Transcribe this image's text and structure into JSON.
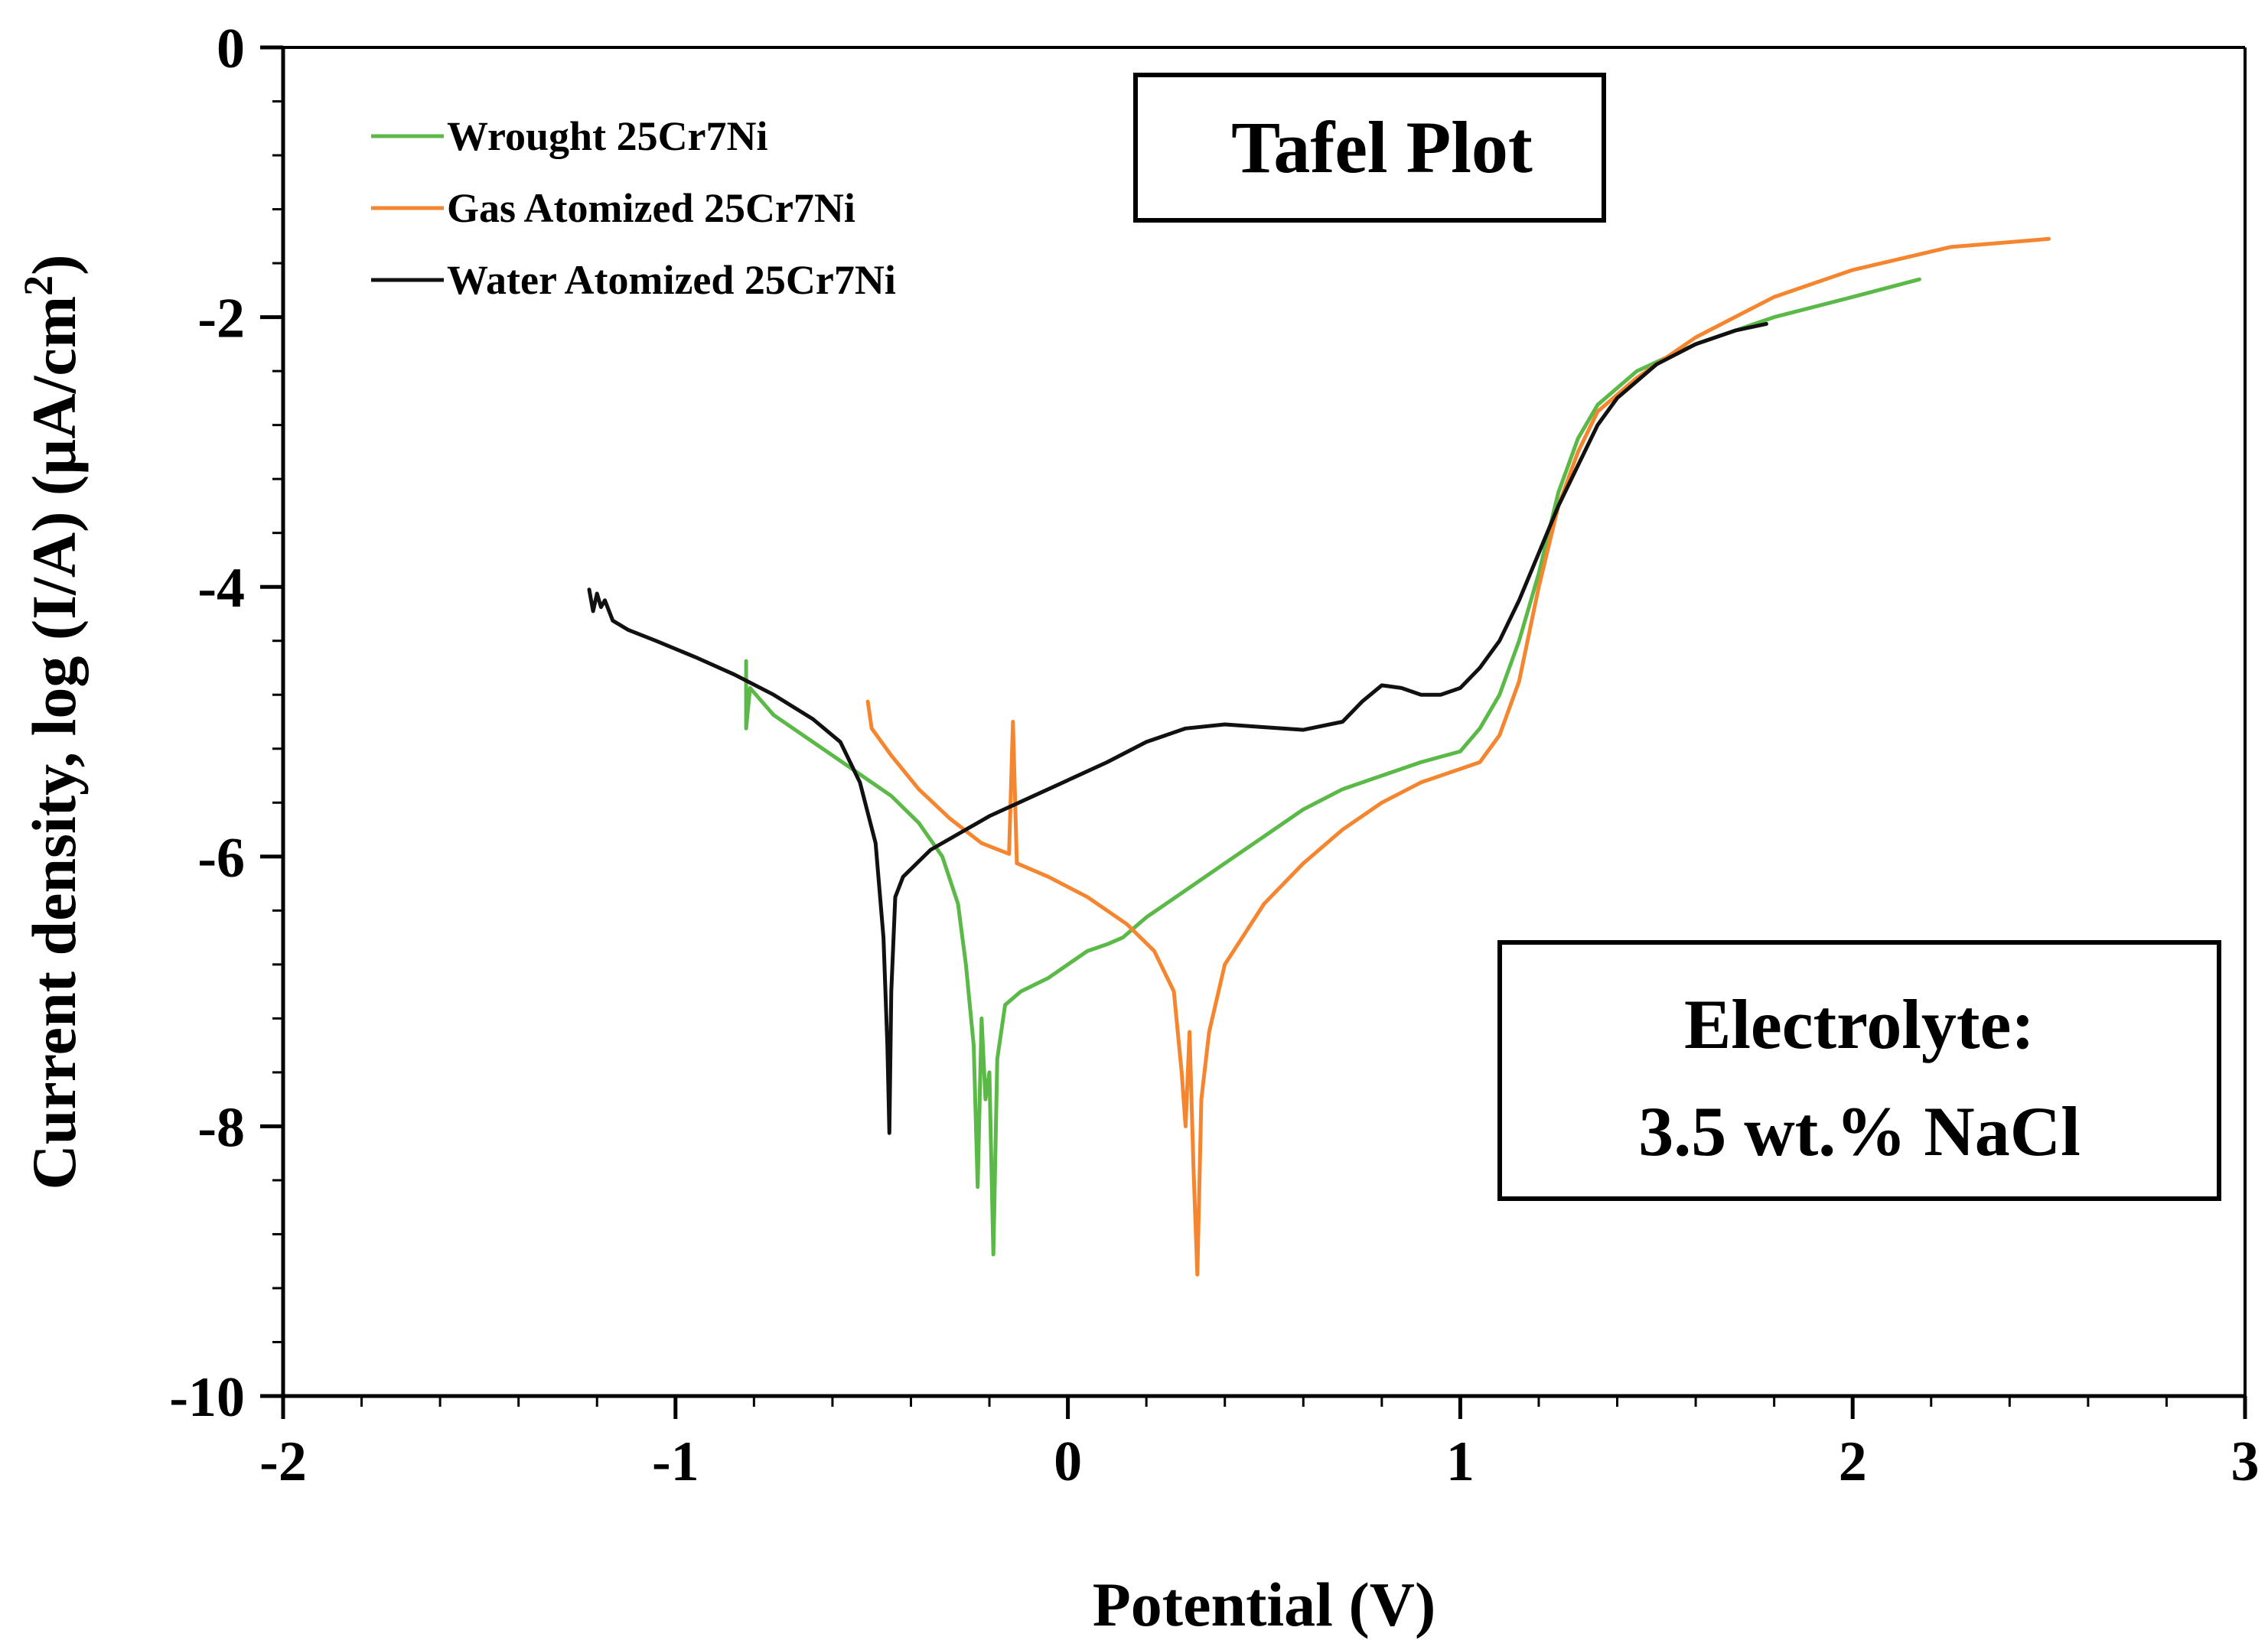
{
  "chart_data": {
    "type": "line",
    "title": "Tafel Plot",
    "xlabel": "Potential (V)",
    "ylabel_main": "Current density, log (I/A) (µA/cm",
    "ylabel_sup": "2",
    "ylabel_close": ")",
    "xlim": [
      -2,
      3
    ],
    "ylim": [
      -10,
      0
    ],
    "x_ticks": [
      {
        "value": -2,
        "label": "-2"
      },
      {
        "value": -1,
        "label": "-1"
      },
      {
        "value": 0,
        "label": "0"
      },
      {
        "value": 1,
        "label": "1"
      },
      {
        "value": 2,
        "label": "2"
      },
      {
        "value": 3,
        "label": "3"
      }
    ],
    "y_ticks": [
      {
        "value": 0,
        "label": "0"
      },
      {
        "value": -2,
        "label": "-2"
      },
      {
        "value": -4,
        "label": "-4"
      },
      {
        "value": -6,
        "label": "-6"
      },
      {
        "value": -8,
        "label": "-8"
      },
      {
        "value": -10,
        "label": "-10"
      }
    ],
    "annotation": {
      "line1": "Electrolyte:",
      "line2": "3.5 wt.% NaCl"
    },
    "legend_position": "top-left",
    "series": [
      {
        "name": "Wrought 25Cr7Ni",
        "color": "#5ab947",
        "points": [
          [
            -0.82,
            -4.55
          ],
          [
            -0.82,
            -5.05
          ],
          [
            -0.81,
            -4.75
          ],
          [
            -0.75,
            -4.95
          ],
          [
            -0.65,
            -5.15
          ],
          [
            -0.55,
            -5.35
          ],
          [
            -0.45,
            -5.55
          ],
          [
            -0.38,
            -5.75
          ],
          [
            -0.32,
            -6.0
          ],
          [
            -0.28,
            -6.35
          ],
          [
            -0.26,
            -6.8
          ],
          [
            -0.24,
            -7.4
          ],
          [
            -0.23,
            -8.45
          ],
          [
            -0.22,
            -7.2
          ],
          [
            -0.21,
            -7.8
          ],
          [
            -0.2,
            -7.6
          ],
          [
            -0.19,
            -8.95
          ],
          [
            -0.18,
            -7.5
          ],
          [
            -0.16,
            -7.1
          ],
          [
            -0.12,
            -7.0
          ],
          [
            -0.05,
            -6.9
          ],
          [
            0.0,
            -6.8
          ],
          [
            0.05,
            -6.7
          ],
          [
            0.1,
            -6.65
          ],
          [
            0.14,
            -6.6
          ],
          [
            0.2,
            -6.45
          ],
          [
            0.3,
            -6.25
          ],
          [
            0.4,
            -6.05
          ],
          [
            0.5,
            -5.85
          ],
          [
            0.6,
            -5.65
          ],
          [
            0.7,
            -5.5
          ],
          [
            0.8,
            -5.4
          ],
          [
            0.9,
            -5.3
          ],
          [
            1.0,
            -5.22
          ],
          [
            1.05,
            -5.05
          ],
          [
            1.1,
            -4.8
          ],
          [
            1.15,
            -4.4
          ],
          [
            1.2,
            -3.9
          ],
          [
            1.25,
            -3.3
          ],
          [
            1.3,
            -2.9
          ],
          [
            1.35,
            -2.65
          ],
          [
            1.45,
            -2.4
          ],
          [
            1.6,
            -2.2
          ],
          [
            1.8,
            -2.0
          ],
          [
            2.0,
            -1.85
          ],
          [
            2.17,
            -1.72
          ]
        ]
      },
      {
        "name": "Gas Atomized 25Cr7Ni",
        "color": "#f5862f",
        "points": [
          [
            -0.51,
            -4.85
          ],
          [
            -0.5,
            -5.05
          ],
          [
            -0.45,
            -5.25
          ],
          [
            -0.38,
            -5.5
          ],
          [
            -0.3,
            -5.72
          ],
          [
            -0.22,
            -5.9
          ],
          [
            -0.15,
            -5.98
          ],
          [
            -0.14,
            -5.0
          ],
          [
            -0.13,
            -6.05
          ],
          [
            -0.05,
            -6.15
          ],
          [
            0.05,
            -6.3
          ],
          [
            0.15,
            -6.5
          ],
          [
            0.22,
            -6.7
          ],
          [
            0.27,
            -7.0
          ],
          [
            0.29,
            -7.6
          ],
          [
            0.3,
            -8.0
          ],
          [
            0.31,
            -7.3
          ],
          [
            0.32,
            -8.3
          ],
          [
            0.33,
            -9.1
          ],
          [
            0.34,
            -7.8
          ],
          [
            0.36,
            -7.3
          ],
          [
            0.4,
            -6.8
          ],
          [
            0.5,
            -6.35
          ],
          [
            0.6,
            -6.05
          ],
          [
            0.7,
            -5.8
          ],
          [
            0.8,
            -5.6
          ],
          [
            0.9,
            -5.45
          ],
          [
            1.0,
            -5.35
          ],
          [
            1.05,
            -5.3
          ],
          [
            1.1,
            -5.1
          ],
          [
            1.15,
            -4.7
          ],
          [
            1.2,
            -4.0
          ],
          [
            1.25,
            -3.4
          ],
          [
            1.3,
            -3.0
          ],
          [
            1.35,
            -2.7
          ],
          [
            1.45,
            -2.45
          ],
          [
            1.6,
            -2.15
          ],
          [
            1.8,
            -1.85
          ],
          [
            2.0,
            -1.65
          ],
          [
            2.25,
            -1.48
          ],
          [
            2.5,
            -1.42
          ]
        ]
      },
      {
        "name": "Water Atomized 25Cr7Ni",
        "color": "#111111",
        "points": [
          [
            -1.22,
            -4.02
          ],
          [
            -1.21,
            -4.18
          ],
          [
            -1.2,
            -4.05
          ],
          [
            -1.19,
            -4.15
          ],
          [
            -1.18,
            -4.1
          ],
          [
            -1.16,
            -4.25
          ],
          [
            -1.12,
            -4.32
          ],
          [
            -1.05,
            -4.4
          ],
          [
            -0.95,
            -4.52
          ],
          [
            -0.85,
            -4.65
          ],
          [
            -0.75,
            -4.8
          ],
          [
            -0.65,
            -4.98
          ],
          [
            -0.58,
            -5.15
          ],
          [
            -0.53,
            -5.45
          ],
          [
            -0.49,
            -5.9
          ],
          [
            -0.47,
            -6.6
          ],
          [
            -0.46,
            -7.4
          ],
          [
            -0.455,
            -8.05
          ],
          [
            -0.45,
            -7.0
          ],
          [
            -0.44,
            -6.3
          ],
          [
            -0.42,
            -6.15
          ],
          [
            -0.35,
            -5.95
          ],
          [
            -0.2,
            -5.7
          ],
          [
            -0.05,
            -5.5
          ],
          [
            0.1,
            -5.3
          ],
          [
            0.2,
            -5.15
          ],
          [
            0.3,
            -5.05
          ],
          [
            0.4,
            -5.02
          ],
          [
            0.5,
            -5.04
          ],
          [
            0.6,
            -5.06
          ],
          [
            0.7,
            -5.0
          ],
          [
            0.75,
            -4.85
          ],
          [
            0.8,
            -4.73
          ],
          [
            0.85,
            -4.75
          ],
          [
            0.9,
            -4.8
          ],
          [
            0.95,
            -4.8
          ],
          [
            1.0,
            -4.75
          ],
          [
            1.05,
            -4.6
          ],
          [
            1.1,
            -4.4
          ],
          [
            1.15,
            -4.1
          ],
          [
            1.2,
            -3.75
          ],
          [
            1.25,
            -3.4
          ],
          [
            1.3,
            -3.1
          ],
          [
            1.35,
            -2.8
          ],
          [
            1.4,
            -2.6
          ],
          [
            1.5,
            -2.35
          ],
          [
            1.6,
            -2.2
          ],
          [
            1.7,
            -2.1
          ],
          [
            1.78,
            -2.05
          ]
        ]
      }
    ]
  }
}
